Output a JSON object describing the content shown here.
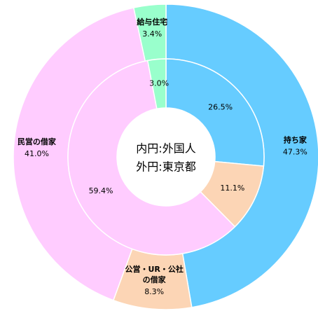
{
  "chart_data": {
    "type": "nested-donut",
    "categories": [
      "持ち家",
      "公営・UR・公社\nの借家",
      "民営の借家",
      "給与住宅"
    ],
    "colors": [
      "#66ccff",
      "#fcd5b5",
      "#ffccff",
      "#99ffcc"
    ],
    "series": [
      {
        "name": "外円:東京都",
        "ring": "outer",
        "values": [
          47.3,
          8.3,
          41.0,
          3.4
        ],
        "value_labels": [
          "47.3%",
          "8.3%",
          "41.0%",
          "3.4%"
        ]
      },
      {
        "name": "内円:外国人",
        "ring": "inner",
        "values": [
          26.5,
          11.1,
          59.4,
          3.0
        ],
        "value_labels": [
          "26.5%",
          "11.1%",
          "59.4%",
          "3.0%"
        ]
      }
    ]
  }
}
